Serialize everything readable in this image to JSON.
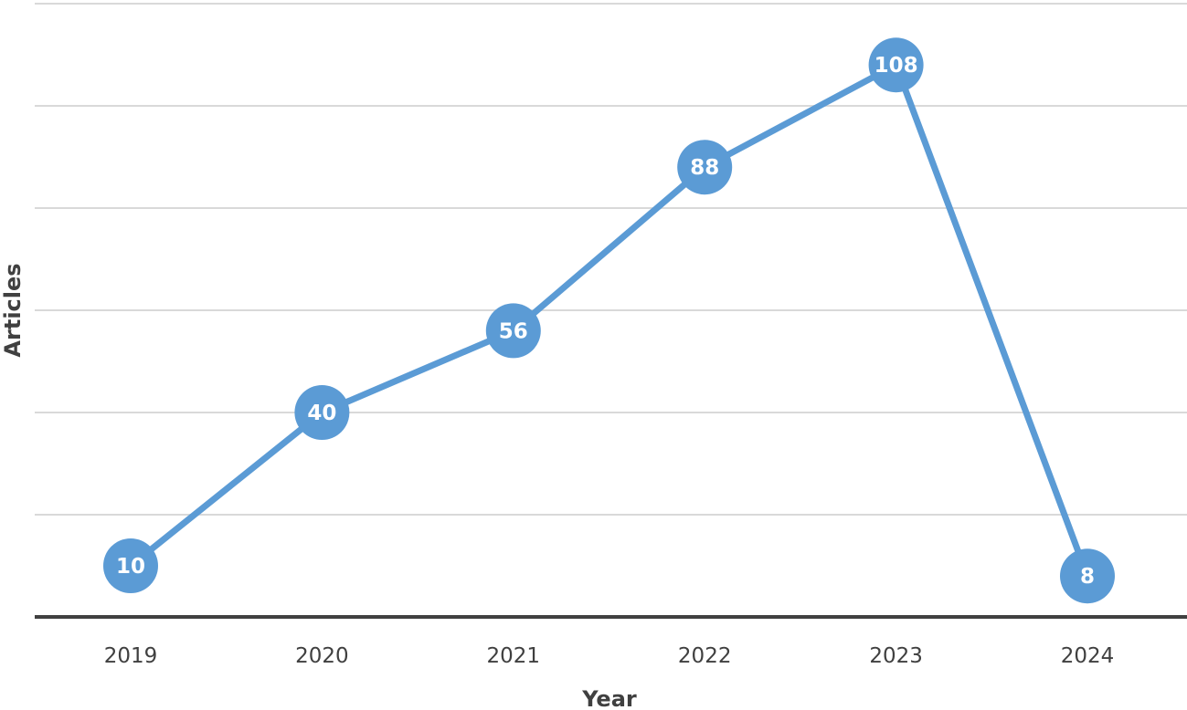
{
  "chart_data": {
    "type": "line",
    "xlabel": "Year",
    "ylabel": "Articles",
    "categories": [
      "2019",
      "2020",
      "2021",
      "2022",
      "2023",
      "2024"
    ],
    "series": [
      {
        "values": [
          10,
          40,
          56,
          88,
          108,
          8
        ],
        "color": "#5b9bd5"
      }
    ],
    "ylim": [
      0,
      120
    ],
    "y_gridlines": [
      20,
      40,
      60,
      80,
      100,
      120
    ],
    "y_tick_labels_shown": false,
    "data_labels": true,
    "grid": true,
    "legend": "none",
    "colors": {
      "line": "#5b9bd5",
      "gridline": "#d9d9d9",
      "axis": "#404040",
      "label_text": "#ffffff"
    }
  }
}
